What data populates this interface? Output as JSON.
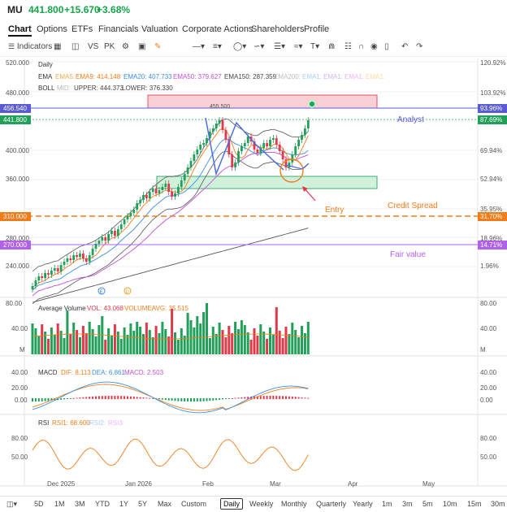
{
  "header": {
    "symbol": "MU",
    "price": "441.800",
    "change": "+15.670",
    "change_pct": "+3.68%"
  },
  "tabs": [
    {
      "label": "Chart",
      "active": true
    },
    {
      "label": "Options"
    },
    {
      "label": "ETFs"
    },
    {
      "label": "Financials"
    },
    {
      "label": "Valuation"
    },
    {
      "label": "Corporate Actions"
    },
    {
      "label": "Shareholders"
    },
    {
      "label": "Profile"
    }
  ],
  "toolbar": {
    "indicators_label": "Indicators",
    "vs_label": "VS",
    "pk_label": "PK"
  },
  "chart": {
    "period": "Daily",
    "ema_line": {
      "name": "EMA",
      "items": [
        "EMA5:",
        "EMA9: 414.148",
        "EMA20: 407.733",
        "EMA50: 379.627",
        "EMA150: 287.359",
        "EMA200:",
        "EMA1:",
        "EMA1:",
        "EMA1:",
        "EMA1:"
      ]
    },
    "boll_line": {
      "name": "BOLL",
      "items": [
        "MID:",
        "UPPER: 444.373",
        "LOWER: 376.330"
      ]
    },
    "price_axis": [
      "520.000",
      "480.000",
      "440.000",
      "400.000",
      "360.000",
      "320.000",
      "280.000",
      "240.000"
    ],
    "pct_axis": [
      "120.92%",
      "103.92%",
      "69.94%",
      "52.94%",
      "35.95%",
      "18.96%",
      "1.96%"
    ],
    "tags": {
      "analyst_price": "456.540",
      "analyst_pct": "93.96%",
      "last_price": "441.800",
      "last_pct": "87.69%",
      "entry_price": "310.000",
      "entry_pct": "31.70%",
      "fair_price": "270.000",
      "fair_pct": "14.71%"
    },
    "annotations": {
      "analyst": "Analyst",
      "credit_spread": "Credit Spread",
      "entry": "Entry",
      "fair_value": "Fair value",
      "high_marker": "455.500"
    },
    "markers": [
      "E",
      "D"
    ],
    "colors": {
      "up": "#22a05a",
      "down": "#e0394a",
      "analyst_line": "#5b5bd6",
      "entry_line": "#f07d1a",
      "fair_line": "#b061e8",
      "last_line": "#22a05a"
    }
  },
  "volume": {
    "title": "Average Volume",
    "vol_label": "VOL: 43.068",
    "avg_label": "VOLUMEAVG: 35.515",
    "axis": [
      "80.00",
      "40.00",
      "M"
    ]
  },
  "macd": {
    "title": "MACD",
    "dif": "DIF: 8.113",
    "dea": "DEA: 6.861",
    "macd": "MACD: 2.503",
    "axis": [
      "40.00",
      "20.00",
      "0.00"
    ]
  },
  "rsi": {
    "title": "RSI",
    "rsi1": "RSI1: 68.600",
    "rsi2": "RSI2:",
    "rsi3": "RSI3:",
    "axis": [
      "80.00",
      "50.00"
    ]
  },
  "x_axis": [
    "Dec 2025",
    "Jan 2026",
    "Feb",
    "Mar",
    "Apr",
    "May"
  ],
  "footer": {
    "ranges": [
      "5D",
      "1M",
      "3M",
      "YTD",
      "1Y",
      "5Y",
      "Max",
      "Custom"
    ],
    "intervals": [
      "Daily",
      "Weekly",
      "Monthly",
      "Quarterly",
      "Yearly",
      "1m",
      "3m",
      "5m",
      "10m",
      "15m",
      "30m"
    ],
    "selected": "Daily"
  }
}
